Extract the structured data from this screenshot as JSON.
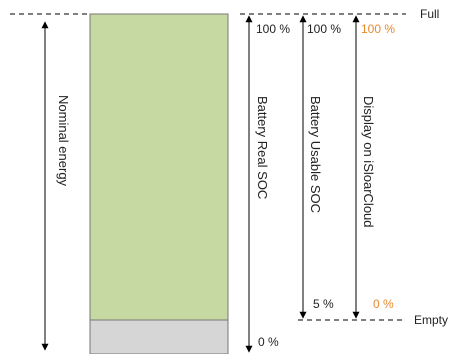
{
  "colors": {
    "usable_block": "#c7d9a2",
    "reserve_block": "#d6d6d6",
    "display_accent": "#e8892f",
    "line": "#000000",
    "text": "#222222"
  },
  "labels": {
    "full": "Full",
    "empty": "Empty",
    "nominal_energy": "Nominal energy",
    "battery_real_soc": "Battery Real SOC",
    "battery_usable_soc": "Battery Usable SOC",
    "display_on_isolarcloud": "Display on iSloarCloud"
  },
  "percent_labels": {
    "real_top": "100 %",
    "real_bottom": "0 %",
    "usable_top": "100 %",
    "usable_bottom": "5 %",
    "display_top": "100 %",
    "display_bottom": "0 %"
  }
}
